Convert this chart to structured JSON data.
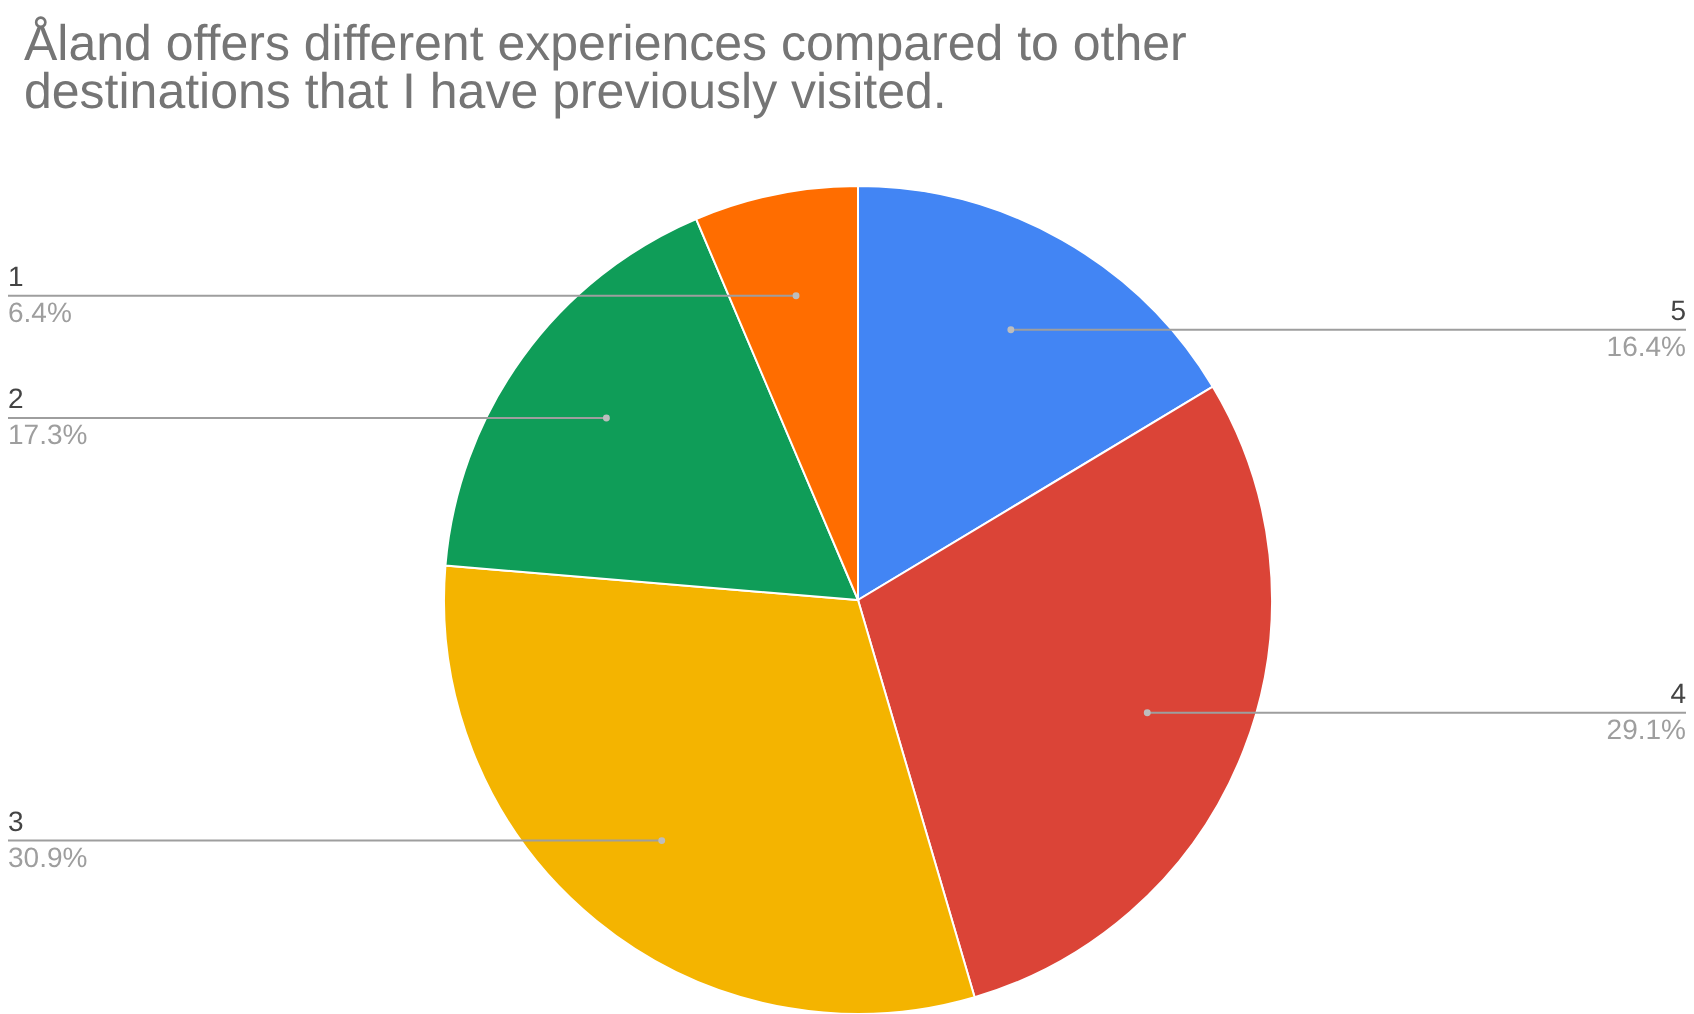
{
  "chart_data": {
    "type": "pie",
    "title": "Åland offers different experiences compared to other destinations that I have previously visited.",
    "categories": [
      "5",
      "4",
      "3",
      "2",
      "1"
    ],
    "values": [
      16.4,
      29.1,
      30.9,
      17.3,
      6.4
    ],
    "value_labels": [
      "16.4%",
      "29.1%",
      "30.9%",
      "17.3%",
      "6.4%"
    ],
    "colors": [
      "#4285f4",
      "#db4437",
      "#f4b400",
      "#0f9d58",
      "#ff6d00"
    ]
  }
}
